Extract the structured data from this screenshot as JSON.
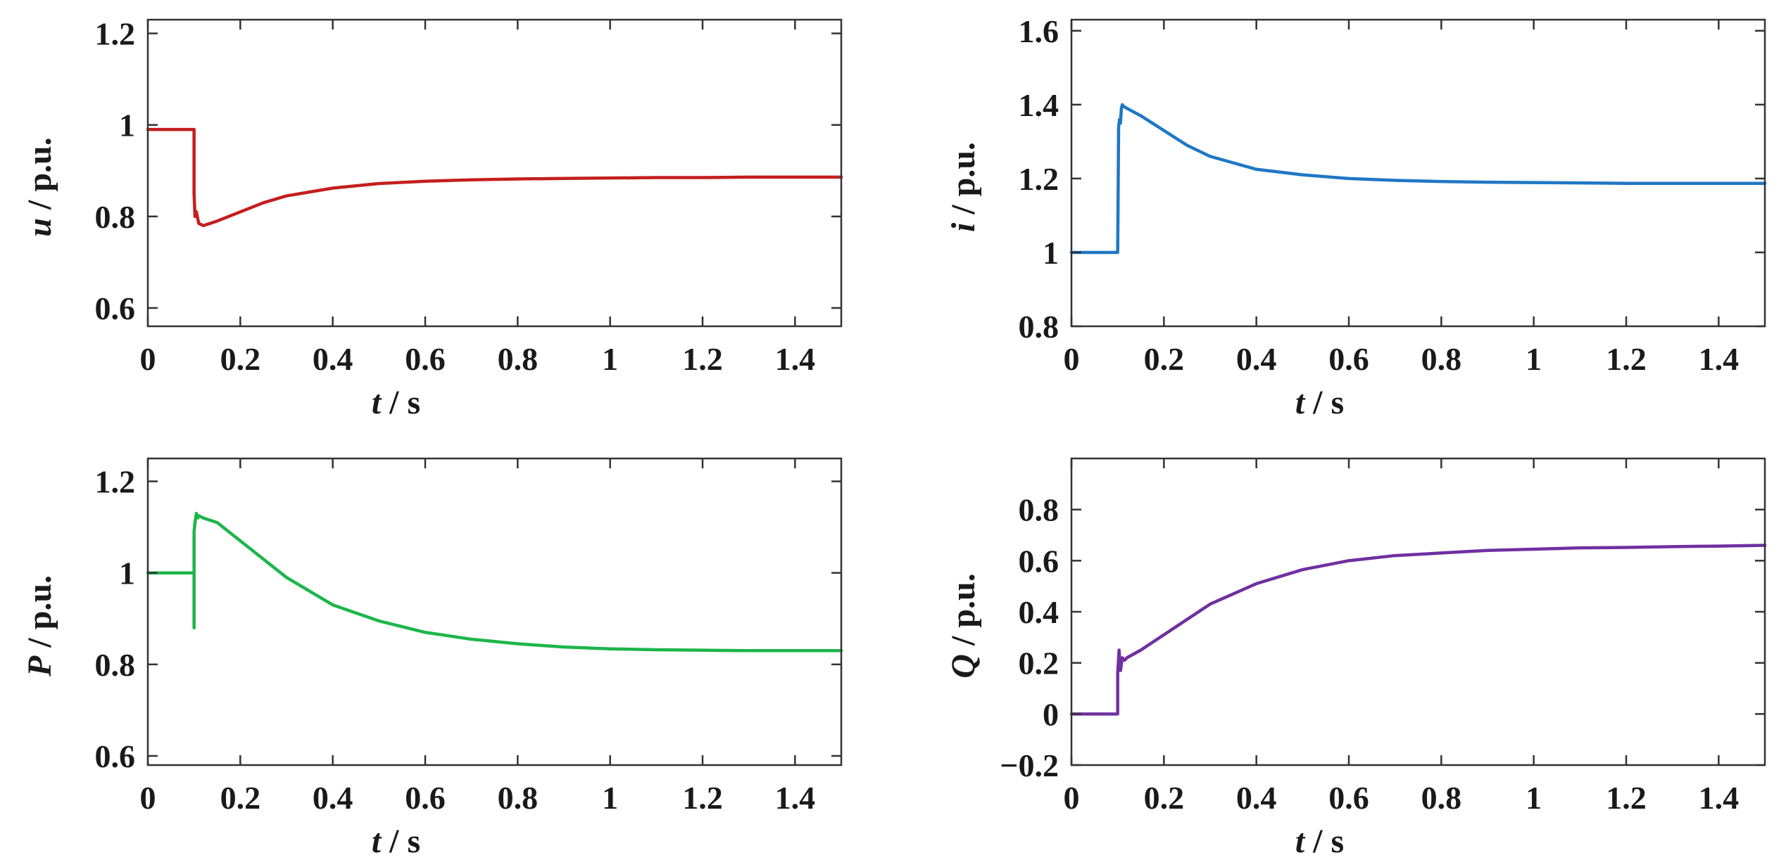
{
  "chart_data": [
    {
      "type": "line",
      "ylabel_var": "u",
      "ylabel_unit": " / p.u.",
      "xlabel_var": "t",
      "xlabel_unit": " / s",
      "xlim": [
        0,
        1.5
      ],
      "ylim": [
        0.56,
        1.23
      ],
      "xticks": [
        0,
        0.2,
        0.4,
        0.6,
        0.8,
        1,
        1.2,
        1.4
      ],
      "xtick_labels": [
        "0",
        "0.2",
        "0.4",
        "0.6",
        "0.8",
        "1",
        "1.2",
        "1.4"
      ],
      "yticks": [
        0.6,
        0.8,
        1,
        1.2
      ],
      "ytick_labels": [
        "0.6",
        "0.8",
        "1",
        "1.2"
      ],
      "grid": false,
      "series": [
        {
          "name": "u",
          "color": "#c41e1e",
          "x": [
            0,
            0.1,
            0.1,
            0.102,
            0.105,
            0.11,
            0.12,
            0.15,
            0.2,
            0.25,
            0.3,
            0.4,
            0.5,
            0.6,
            0.7,
            0.8,
            0.9,
            1.0,
            1.1,
            1.2,
            1.3,
            1.4,
            1.5
          ],
          "y": [
            0.99,
            0.99,
            0.85,
            0.8,
            0.81,
            0.785,
            0.78,
            0.79,
            0.81,
            0.83,
            0.845,
            0.862,
            0.872,
            0.877,
            0.88,
            0.882,
            0.883,
            0.884,
            0.885,
            0.885,
            0.886,
            0.886,
            0.886
          ]
        }
      ]
    },
    {
      "type": "line",
      "ylabel_var": "i",
      "ylabel_unit": " / p.u.",
      "xlabel_var": "t",
      "xlabel_unit": " / s",
      "xlim": [
        0,
        1.5
      ],
      "ylim": [
        0.8,
        1.63
      ],
      "xticks": [
        0,
        0.2,
        0.4,
        0.6,
        0.8,
        1,
        1.2,
        1.4
      ],
      "xtick_labels": [
        "0",
        "0.2",
        "0.4",
        "0.6",
        "0.8",
        "1",
        "1.2",
        "1.4"
      ],
      "yticks": [
        0.8,
        1,
        1.2,
        1.4,
        1.6
      ],
      "ytick_labels": [
        "0.8",
        "1",
        "1.2",
        "1.4",
        "1.6"
      ],
      "grid": false,
      "series": [
        {
          "name": "i",
          "color": "#1f77c4",
          "x": [
            0,
            0.1,
            0.102,
            0.104,
            0.106,
            0.108,
            0.11,
            0.113,
            0.12,
            0.15,
            0.2,
            0.25,
            0.3,
            0.4,
            0.5,
            0.6,
            0.7,
            0.8,
            0.9,
            1.0,
            1.1,
            1.2,
            1.3,
            1.4,
            1.5
          ],
          "y": [
            1.0,
            1.0,
            1.34,
            1.36,
            1.35,
            1.39,
            1.4,
            1.395,
            1.39,
            1.37,
            1.33,
            1.29,
            1.26,
            1.225,
            1.21,
            1.2,
            1.195,
            1.192,
            1.19,
            1.189,
            1.188,
            1.187,
            1.187,
            1.187,
            1.187
          ]
        }
      ]
    },
    {
      "type": "line",
      "ylabel_var": "P",
      "ylabel_unit": " / p.u.",
      "xlabel_var": "t",
      "xlabel_unit": " / s",
      "xlim": [
        0,
        1.5
      ],
      "ylim": [
        0.58,
        1.25
      ],
      "xticks": [
        0,
        0.2,
        0.4,
        0.6,
        0.8,
        1,
        1.2,
        1.4
      ],
      "xtick_labels": [
        "0",
        "0.2",
        "0.4",
        "0.6",
        "0.8",
        "1",
        "1.2",
        "1.4"
      ],
      "yticks": [
        0.6,
        0.8,
        1,
        1.2
      ],
      "ytick_labels": [
        "0.6",
        "0.8",
        "1",
        "1.2"
      ],
      "grid": false,
      "series": [
        {
          "name": "P",
          "color": "#1db54a",
          "x": [
            0,
            0.1,
            0.1,
            0.1,
            0.102,
            0.105,
            0.108,
            0.11,
            0.12,
            0.15,
            0.2,
            0.25,
            0.3,
            0.4,
            0.5,
            0.6,
            0.7,
            0.8,
            0.9,
            1.0,
            1.1,
            1.2,
            1.3,
            1.4,
            1.5
          ],
          "y": [
            1.0,
            1.0,
            0.88,
            1.09,
            1.11,
            1.13,
            1.12,
            1.125,
            1.12,
            1.11,
            1.07,
            1.03,
            0.99,
            0.93,
            0.895,
            0.87,
            0.855,
            0.845,
            0.838,
            0.834,
            0.832,
            0.831,
            0.83,
            0.83,
            0.83
          ]
        }
      ]
    },
    {
      "type": "line",
      "ylabel_var": "Q",
      "ylabel_unit": " / p.u.",
      "xlabel_var": "t",
      "xlabel_unit": " / s",
      "xlim": [
        0,
        1.5
      ],
      "ylim": [
        -0.2,
        1.0
      ],
      "xticks": [
        0,
        0.2,
        0.4,
        0.6,
        0.8,
        1,
        1.2,
        1.4
      ],
      "xtick_labels": [
        "0",
        "0.2",
        "0.4",
        "0.6",
        "0.8",
        "1",
        "1.2",
        "1.4"
      ],
      "yticks": [
        -0.2,
        0,
        0.2,
        0.4,
        0.6,
        0.8
      ],
      "ytick_labels": [
        "−0.2",
        "0",
        "0.2",
        "0.4",
        "0.6",
        "0.8"
      ],
      "grid": false,
      "series": [
        {
          "name": "Q",
          "color": "#7030a0",
          "x": [
            0,
            0.1,
            0.1,
            0.103,
            0.106,
            0.11,
            0.115,
            0.12,
            0.15,
            0.2,
            0.25,
            0.3,
            0.4,
            0.5,
            0.6,
            0.7,
            0.8,
            0.9,
            1.0,
            1.1,
            1.2,
            1.3,
            1.4,
            1.5
          ],
          "y": [
            0.0,
            0.0,
            0.16,
            0.25,
            0.17,
            0.22,
            0.21,
            0.22,
            0.25,
            0.31,
            0.37,
            0.43,
            0.51,
            0.565,
            0.6,
            0.62,
            0.63,
            0.64,
            0.645,
            0.65,
            0.652,
            0.655,
            0.657,
            0.66
          ]
        }
      ]
    }
  ]
}
